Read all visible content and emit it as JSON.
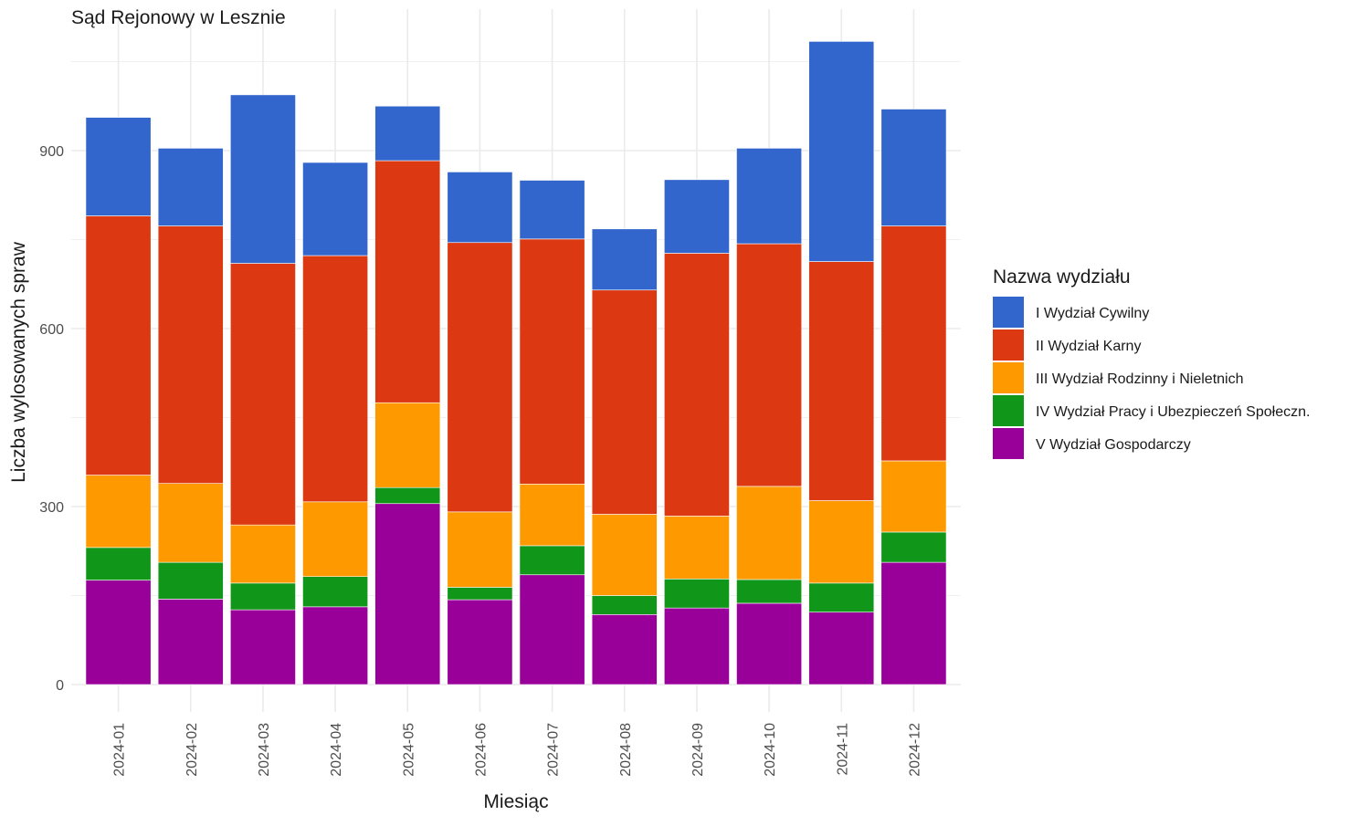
{
  "chart_data": {
    "type": "bar",
    "stacked": true,
    "title": "Sąd Rejonowy w Lesznie",
    "xlabel": "Miesiąc",
    "ylabel": "Liczba wylosowanych spraw",
    "ylim": [
      0,
      1100
    ],
    "yticks": [
      0,
      300,
      600,
      900
    ],
    "grid": true,
    "categories": [
      "2024-01",
      "2024-02",
      "2024-03",
      "2024-04",
      "2024-05",
      "2024-06",
      "2024-07",
      "2024-08",
      "2024-09",
      "2024-10",
      "2024-11",
      "2024-12"
    ],
    "legend": {
      "title": "Nazwa wydziału",
      "position": "right"
    },
    "series": [
      {
        "name": "V Wydział Gospodarczy",
        "color": "#990099",
        "values": [
          176,
          144,
          126,
          131,
          305,
          143,
          185,
          118,
          129,
          137,
          122,
          206
        ]
      },
      {
        "name": "IV Wydział Pracy i Ubezpieczeń Społeczn.",
        "color": "#109618",
        "values": [
          55,
          62,
          45,
          51,
          27,
          21,
          49,
          32,
          49,
          40,
          49,
          51
        ]
      },
      {
        "name": "III Wydział Rodzinny i Nieletnich",
        "color": "#FF9900",
        "values": [
          122,
          133,
          98,
          126,
          143,
          127,
          104,
          137,
          106,
          157,
          139,
          120
        ]
      },
      {
        "name": "II Wydział Karny",
        "color": "#DC3912",
        "values": [
          437,
          434,
          441,
          415,
          408,
          454,
          413,
          378,
          443,
          409,
          403,
          396
        ]
      },
      {
        "name": "I Wydział Cywilny",
        "color": "#3366CC",
        "values": [
          166,
          131,
          284,
          157,
          92,
          119,
          99,
          103,
          124,
          161,
          371,
          197
        ]
      }
    ],
    "legend_order": [
      "I Wydział Cywilny",
      "II Wydział Karny",
      "III Wydział Rodzinny i Nieletnich",
      "IV Wydział Pracy i Ubezpieczeń Społeczn.",
      "V Wydział Gospodarczy"
    ]
  }
}
